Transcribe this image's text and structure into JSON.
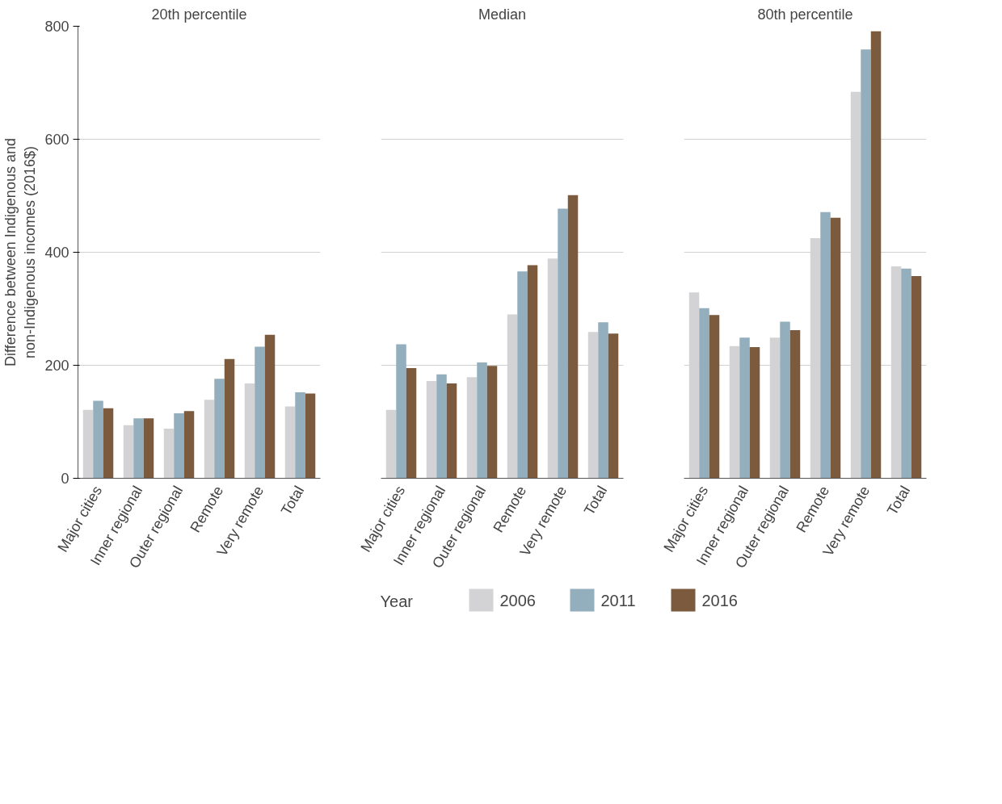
{
  "chart_data": [
    {
      "type": "bar",
      "title": "20th percentile",
      "ylabel": "Difference between Indigenous and\nnon-Indigenous incomes (2016$)",
      "categories": [
        "Major cities",
        "Inner regional",
        "Outer regional",
        "Remote",
        "Very remote",
        "Total"
      ],
      "ylim": [
        0,
        800
      ],
      "yticks": [
        0,
        200,
        400,
        600,
        800
      ],
      "grid": "y",
      "series": [
        {
          "color": "#d3d3d5",
          "values": [
            121,
            94,
            88,
            139,
            168,
            127
          ]
        },
        {
          "color": "#93aebd",
          "values": [
            137,
            106,
            115,
            176,
            233,
            152
          ]
        },
        {
          "color": "#7b5a3e",
          "values": [
            124,
            106,
            119,
            211,
            254,
            150
          ]
        }
      ]
    },
    {
      "type": "bar",
      "title": "Median",
      "categories": [
        "Major cities",
        "Inner regional",
        "Outer regional",
        "Remote",
        "Very remote",
        "Total"
      ],
      "ylim": [
        0,
        800
      ],
      "yticks": [
        0,
        200,
        400,
        600,
        800
      ],
      "tick_labels": "x",
      "grid": "y",
      "legend": "bottom",
      "legend_title": "Year",
      "series": [
        {
          "name": "2006",
          "color": "#d3d3d5",
          "values": [
            121,
            172,
            179,
            290,
            389,
            259
          ]
        },
        {
          "name": "2011",
          "color": "#93aebd",
          "values": [
            237,
            184,
            205,
            366,
            477,
            276
          ]
        },
        {
          "name": "2016",
          "color": "#7b5a3e",
          "values": [
            195,
            168,
            199,
            377,
            501,
            256
          ]
        }
      ]
    },
    {
      "type": "bar",
      "title": "80th percentile",
      "categories": [
        "Major cities",
        "Inner regional",
        "Outer regional",
        "Remote",
        "Very remote",
        "Total"
      ],
      "ylim": [
        0,
        800
      ],
      "yticks": [
        0,
        200,
        400,
        600,
        800
      ],
      "tick_labels": "x",
      "grid": "y",
      "series": [
        {
          "color": "#d3d3d5",
          "values": [
            329,
            234,
            249,
            425,
            684,
            375
          ]
        },
        {
          "color": "#93aebd",
          "values": [
            301,
            249,
            277,
            471,
            759,
            371
          ]
        },
        {
          "color": "#7b5a3e",
          "values": [
            289,
            232,
            262,
            461,
            791,
            358
          ]
        }
      ]
    }
  ]
}
